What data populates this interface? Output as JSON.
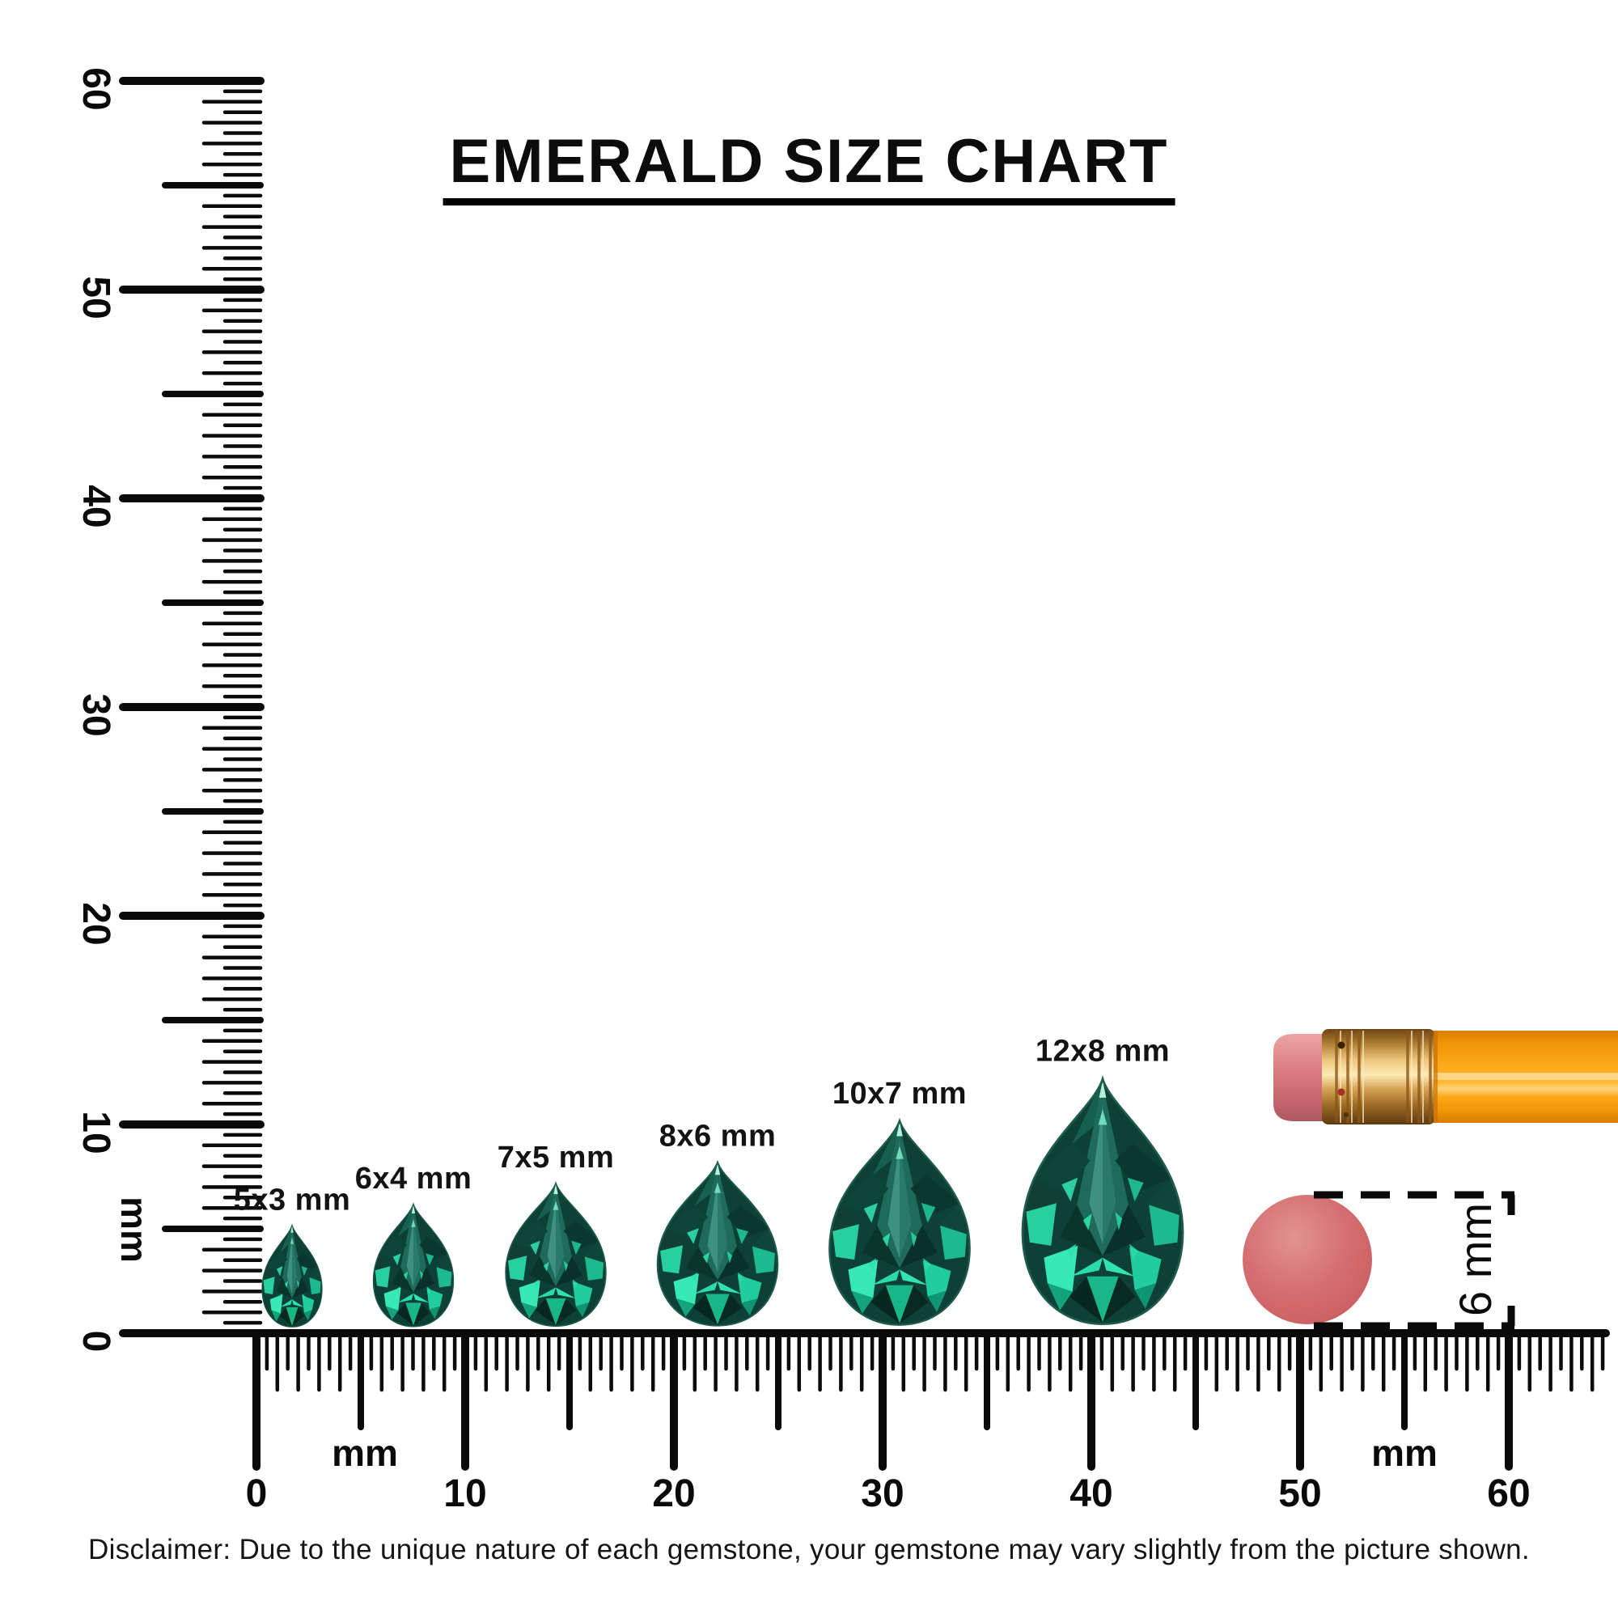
{
  "title": "EMERALD SIZE CHART",
  "disclaimer": "Disclaimer: Due to the unique nature of each gemstone, your gemstone may vary slightly from the picture shown.",
  "left_ruler": {
    "unit_label": "mm",
    "tick_labels": [
      "60",
      "50",
      "40",
      "30",
      "20",
      "10",
      "0"
    ],
    "range_mm": [
      0,
      60
    ]
  },
  "bottom_ruler": {
    "unit_label_left": "mm",
    "unit_label_right": "mm",
    "tick_labels": [
      "0",
      "10",
      "20",
      "30",
      "40",
      "50",
      "60"
    ],
    "range_mm": [
      0,
      60
    ]
  },
  "gems": [
    {
      "label": "5x3 mm",
      "width_mm": 3,
      "height_mm": 5
    },
    {
      "label": "6x4 mm",
      "width_mm": 4,
      "height_mm": 6
    },
    {
      "label": "7x5 mm",
      "width_mm": 5,
      "height_mm": 7
    },
    {
      "label": "8x6 mm",
      "width_mm": 6,
      "height_mm": 8
    },
    {
      "label": "10x7 mm",
      "width_mm": 7,
      "height_mm": 10
    },
    {
      "label": "12x8 mm",
      "width_mm": 8,
      "height_mm": 12
    }
  ],
  "reference_objects": {
    "eraser_disc_label": "6 mm",
    "pencil": "pencil-with-eraser-tip"
  },
  "colors": {
    "ink": "#0a0a0a",
    "emerald_base": "#0D4036",
    "emerald_rim": "#1E5B4C",
    "emerald_bright": "#23CD9C",
    "emerald_glint": "#BFF8E3",
    "pencil_orange": "#F9A513",
    "ferrule_gold": "#ECC47B",
    "eraser_pink": "#D87A7E",
    "disc_pink": "#D56F72"
  }
}
